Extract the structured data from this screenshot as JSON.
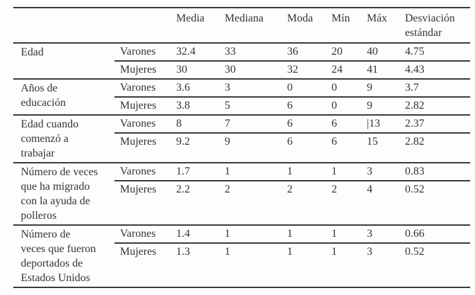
{
  "table": {
    "headers": [
      "Media",
      "Mediana",
      "Moda",
      "Mín",
      "Máx",
      "Desviación estándar"
    ],
    "groups": [
      {
        "label_lines": [
          "Edad"
        ],
        "rows": [
          {
            "sex": "Varones",
            "values": [
              "32.4",
              "33",
              "36",
              "20",
              "40",
              "4.75"
            ]
          },
          {
            "sex": "Mujeres",
            "values": [
              "30",
              "30",
              "32",
              "24",
              "41",
              "4.43"
            ]
          }
        ]
      },
      {
        "label_lines": [
          "Años de",
          "educación"
        ],
        "rows": [
          {
            "sex": "Varones",
            "values": [
              "3.6",
              "3",
              "0",
              "0",
              "9",
              "3.7"
            ]
          },
          {
            "sex": "Mujeres",
            "values": [
              "3.8",
              "5",
              "6",
              "0",
              "9",
              "2.82"
            ]
          }
        ]
      },
      {
        "label_lines": [
          "Edad cuando",
          "comenzó a",
          "trabajar"
        ],
        "rows": [
          {
            "sex": "Varones",
            "values": [
              "8",
              "7",
              "6",
              "6",
              "|13",
              "2.37"
            ]
          },
          {
            "sex": "Mujeres",
            "values": [
              "9.2",
              "9",
              "6",
              "6",
              "15",
              "2.82"
            ]
          }
        ]
      },
      {
        "label_lines": [
          "Número de veces",
          "que ha migrado",
          "con la ayuda de",
          "polleros"
        ],
        "rows": [
          {
            "sex": "Varones",
            "values": [
              "1.7",
              "1",
              "1",
              "1",
              "3",
              "0.83"
            ]
          },
          {
            "sex": "Mujeres",
            "values": [
              "2.2",
              "2",
              "2",
              "2",
              "4",
              "0.52"
            ]
          }
        ]
      },
      {
        "label_lines": [
          "Número de",
          "veces que fueron",
          "deportados de",
          "Estados Unidos"
        ],
        "rows": [
          {
            "sex": "Varones",
            "values": [
              "1.4",
              "1",
              "1",
              "1",
              "3",
              "0.66"
            ]
          },
          {
            "sex": "Mujeres",
            "values": [
              "1.3",
              "1",
              "1",
              "1",
              "3",
              "0.52"
            ]
          }
        ]
      }
    ]
  },
  "colors": {
    "text": "#333333",
    "rule": "#3a3a3a",
    "background": "#fdfdfd"
  }
}
